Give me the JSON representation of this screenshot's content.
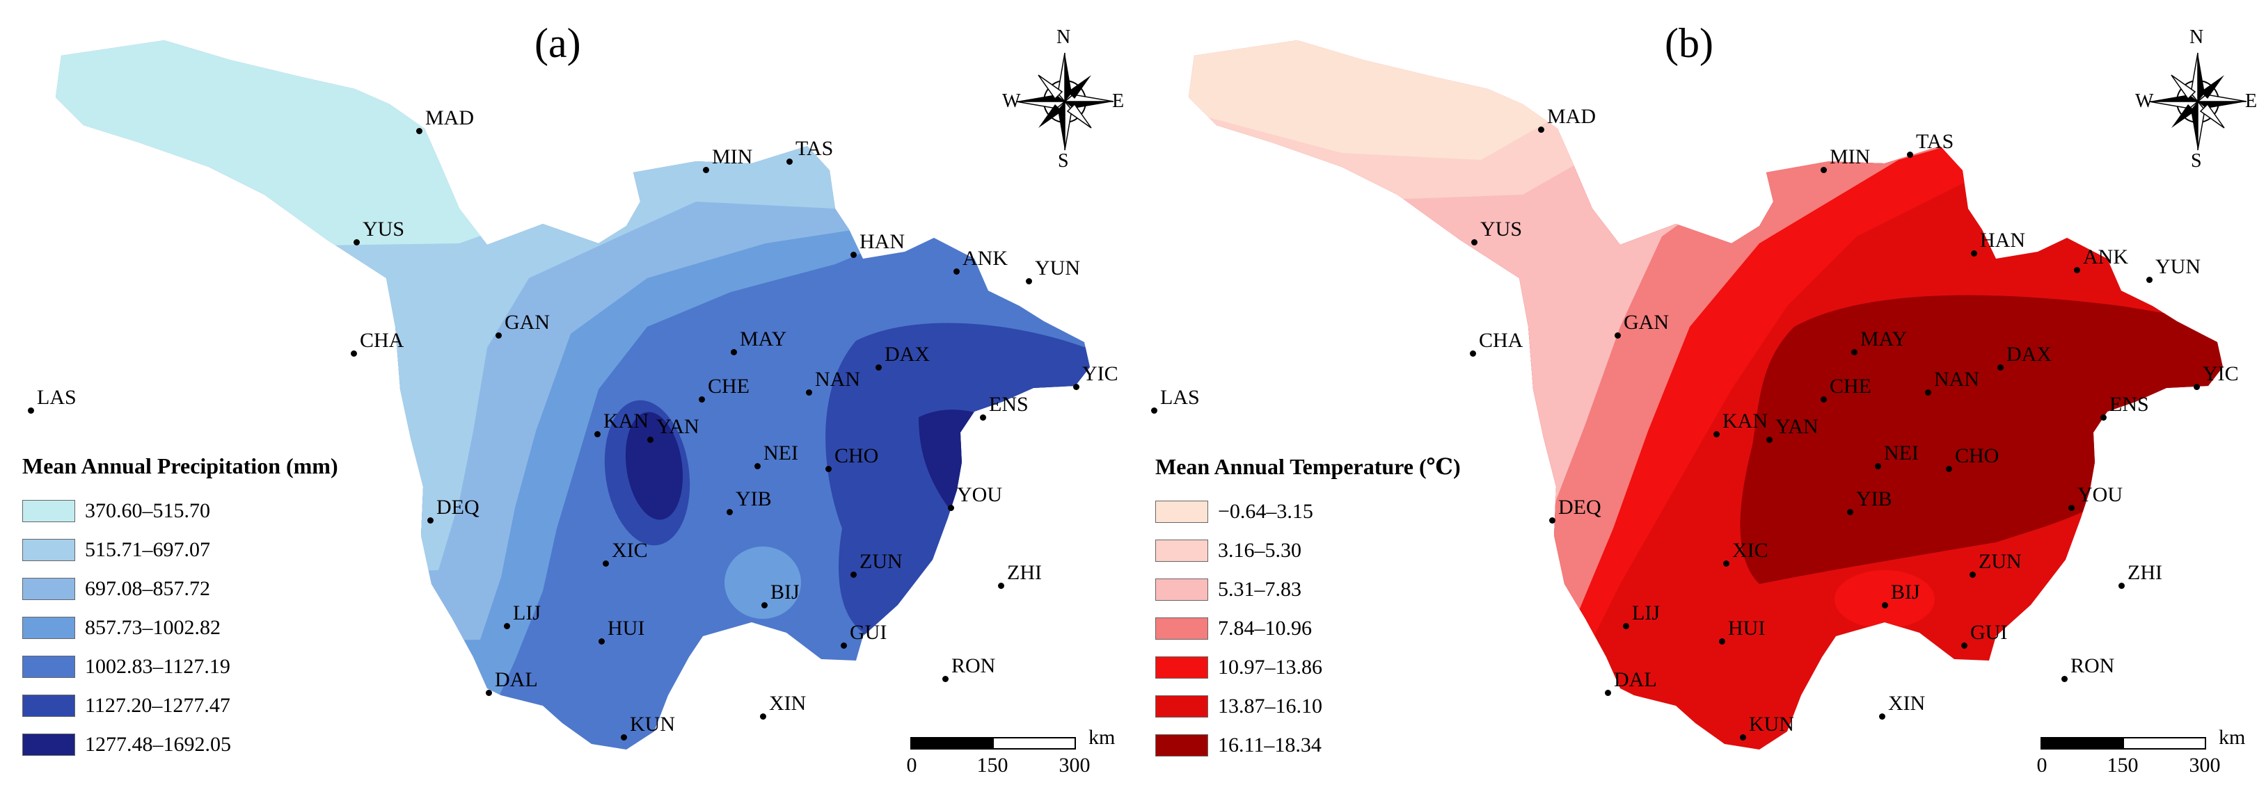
{
  "panels": [
    {
      "label": "(a)",
      "legend": {
        "title": "Mean Annual Precipitation (mm)",
        "classes": [
          {
            "range": "370.60–515.70",
            "color": "#c3ecf0"
          },
          {
            "range": "515.71–697.07",
            "color": "#a6cfeb"
          },
          {
            "range": "697.08–857.72",
            "color": "#8db8e6"
          },
          {
            "range": "857.73–1002.82",
            "color": "#6b9edd"
          },
          {
            "range": "1002.83–1127.19",
            "color": "#4e78cc"
          },
          {
            "range": "1127.20–1277.47",
            "color": "#2f48ab"
          },
          {
            "range": "1277.48–1692.05",
            "color": "#1b2283"
          }
        ]
      }
    },
    {
      "label": "(b)",
      "legend": {
        "title": "Mean Annual Temperature (℃)",
        "classes": [
          {
            "range": "−0.64–3.15",
            "color": "#fde3d4"
          },
          {
            "range": "3.16–5.30",
            "color": "#fcd2cb"
          },
          {
            "range": "5.31–7.83",
            "color": "#fbbcbc"
          },
          {
            "range": "7.84–10.96",
            "color": "#f47d7d"
          },
          {
            "range": "10.97–13.86",
            "color": "#f21010"
          },
          {
            "range": "13.87–16.10",
            "color": "#e00c0c"
          },
          {
            "range": "16.11–18.34",
            "color": "#9e0000"
          }
        ]
      }
    }
  ],
  "compass": {
    "n": "N",
    "s": "S",
    "e": "E",
    "w": "W"
  },
  "scalebar": {
    "ticks": [
      "0",
      "150",
      "300"
    ],
    "unit": "km"
  },
  "cities": [
    {
      "name": "MAD",
      "a": [
        598,
        174
      ],
      "b": [
        2210,
        172
      ]
    },
    {
      "name": "MIN",
      "a": [
        1010,
        230
      ],
      "b": [
        2616,
        230
      ]
    },
    {
      "name": "TAS",
      "a": [
        1130,
        218
      ],
      "b": [
        2740,
        208
      ]
    },
    {
      "name": "YUS",
      "a": [
        508,
        334
      ],
      "b": [
        2114,
        334
      ]
    },
    {
      "name": "HAN",
      "a": [
        1222,
        352
      ],
      "b": [
        2832,
        350
      ]
    },
    {
      "name": "ANK",
      "a": [
        1370,
        376
      ],
      "b": [
        2980,
        374
      ]
    },
    {
      "name": "YUN",
      "a": [
        1474,
        390
      ],
      "b": [
        3084,
        388
      ]
    },
    {
      "name": "CHA",
      "a": [
        504,
        494
      ],
      "b": [
        2112,
        494
      ]
    },
    {
      "name": "GAN",
      "a": [
        712,
        468
      ],
      "b": [
        2320,
        468
      ]
    },
    {
      "name": "MAY",
      "a": [
        1050,
        492
      ],
      "b": [
        2660,
        492
      ]
    },
    {
      "name": "DAX",
      "a": [
        1258,
        514
      ],
      "b": [
        2870,
        514
      ]
    },
    {
      "name": "YIC",
      "a": [
        1542,
        542
      ],
      "b": [
        3152,
        542
      ]
    },
    {
      "name": "LAS",
      "a": [
        40,
        576
      ],
      "b": [
        1654,
        576
      ]
    },
    {
      "name": "NAN",
      "a": [
        1158,
        550
      ],
      "b": [
        2766,
        550
      ]
    },
    {
      "name": "CHE",
      "a": [
        1004,
        560
      ],
      "b": [
        2616,
        560
      ]
    },
    {
      "name": "ENS",
      "a": [
        1408,
        586
      ],
      "b": [
        3018,
        586
      ]
    },
    {
      "name": "KAN",
      "a": [
        854,
        610
      ],
      "b": [
        2462,
        610
      ]
    },
    {
      "name": "YAN",
      "a": [
        930,
        618
      ],
      "b": [
        2538,
        618
      ]
    },
    {
      "name": "NEI",
      "a": [
        1084,
        656
      ],
      "b": [
        2694,
        656
      ]
    },
    {
      "name": "CHO",
      "a": [
        1186,
        660
      ],
      "b": [
        2796,
        660
      ]
    },
    {
      "name": "YOU",
      "a": [
        1362,
        716
      ],
      "b": [
        2972,
        716
      ]
    },
    {
      "name": "YIB",
      "a": [
        1044,
        722
      ],
      "b": [
        2654,
        722
      ]
    },
    {
      "name": "DEQ",
      "a": [
        614,
        734
      ],
      "b": [
        2226,
        734
      ]
    },
    {
      "name": "XIC",
      "a": [
        866,
        796
      ],
      "b": [
        2476,
        796
      ]
    },
    {
      "name": "ZUN",
      "a": [
        1222,
        812
      ],
      "b": [
        2830,
        812
      ]
    },
    {
      "name": "ZHI",
      "a": [
        1434,
        828
      ],
      "b": [
        3044,
        828
      ]
    },
    {
      "name": "BIJ",
      "a": [
        1094,
        856
      ],
      "b": [
        2704,
        856
      ]
    },
    {
      "name": "LIJ",
      "a": [
        724,
        886
      ],
      "b": [
        2332,
        886
      ]
    },
    {
      "name": "HUI",
      "a": [
        860,
        908
      ],
      "b": [
        2470,
        908
      ]
    },
    {
      "name": "GUI",
      "a": [
        1208,
        914
      ],
      "b": [
        2818,
        914
      ]
    },
    {
      "name": "RON",
      "a": [
        1354,
        962
      ],
      "b": [
        2962,
        962
      ]
    },
    {
      "name": "DAL",
      "a": [
        698,
        982
      ],
      "b": [
        2306,
        982
      ]
    },
    {
      "name": "XIN",
      "a": [
        1092,
        1016
      ],
      "b": [
        2700,
        1016
      ]
    },
    {
      "name": "KUN",
      "a": [
        892,
        1046
      ],
      "b": [
        2500,
        1046
      ]
    }
  ]
}
